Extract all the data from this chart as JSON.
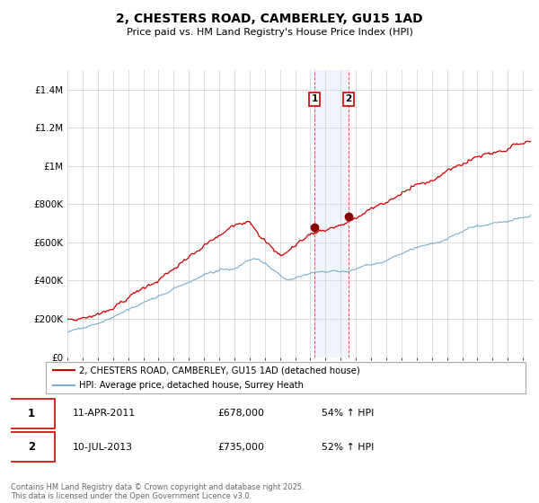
{
  "title": "2, CHESTERS ROAD, CAMBERLEY, GU15 1AD",
  "subtitle": "Price paid vs. HM Land Registry's House Price Index (HPI)",
  "ylim": [
    0,
    1500000
  ],
  "yticks": [
    0,
    200000,
    400000,
    600000,
    800000,
    1000000,
    1200000,
    1400000
  ],
  "ytick_labels": [
    "£0",
    "£200K",
    "£400K",
    "£600K",
    "£800K",
    "£1M",
    "£1.2M",
    "£1.4M"
  ],
  "line1_color": "#cc0000",
  "line2_color": "#7aadcf",
  "highlight_fill": "#ddeeff",
  "highlight_line_color": "#cc0000",
  "transaction1_year": 2011.27,
  "transaction2_year": 2013.52,
  "transaction1_price": 678000,
  "transaction2_price": 735000,
  "legend1_label": "2, CHESTERS ROAD, CAMBERLEY, GU15 1AD (detached house)",
  "legend2_label": "HPI: Average price, detached house, Surrey Heath",
  "background_color": "#ffffff",
  "grid_color": "#cccccc",
  "footer": "Contains HM Land Registry data © Crown copyright and database right 2025.\nThis data is licensed under the Open Government Licence v3.0."
}
